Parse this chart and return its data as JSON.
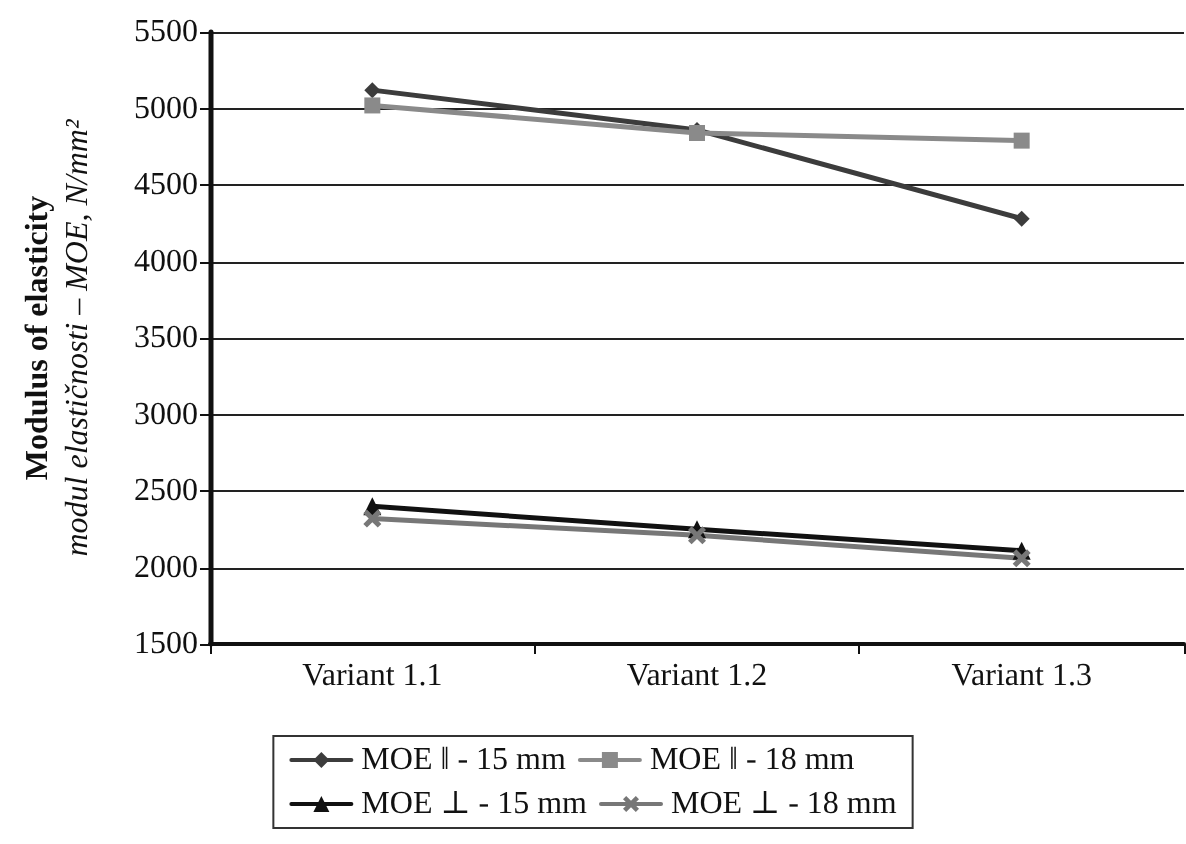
{
  "chart_data": {
    "type": "line",
    "ylabel": "Modulus of elasticity\nmodul elastičnosti – MOE, N/mm²",
    "categories": [
      "Variant 1.1",
      "Variant 1.2",
      "Variant 1.3"
    ],
    "series": [
      {
        "name": "MOE ‖ - 15 mm",
        "color": "#3c3c3c",
        "marker": "diamond",
        "values": [
          5120,
          4860,
          4280
        ]
      },
      {
        "name": "MOE ‖ - 18 mm",
        "color": "#8a8a8a",
        "marker": "square",
        "values": [
          5020,
          4840,
          4790
        ]
      },
      {
        "name": "MOE ⊥ - 15 mm",
        "color": "#111111",
        "marker": "triangle",
        "values": [
          2400,
          2250,
          2110
        ]
      },
      {
        "name": "MOE ⊥ - 18 mm",
        "color": "#777777",
        "marker": "cross",
        "values": [
          2320,
          2210,
          2060
        ]
      }
    ],
    "ylim": [
      1500,
      5500
    ],
    "yticks": [
      1500,
      2000,
      2500,
      3000,
      3500,
      4000,
      4500,
      5000,
      5500
    ],
    "grid": "y",
    "legend": "bottom",
    "line_style": "solid"
  }
}
